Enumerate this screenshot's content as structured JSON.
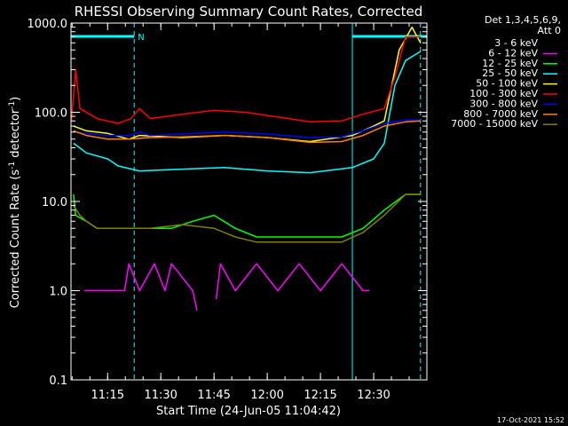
{
  "chart_data": {
    "type": "line",
    "title": "RHESSI Observing Summary Count Rates, Corrected",
    "xlabel": "Start Time (24-Jun-05 11:04:42)",
    "ylabel": "Corrected Count Rate (s⁻¹ detector⁻¹)",
    "ylabel_main": "Corrected Count Rate (s",
    "ylabel_sup1": "-1",
    "ylabel_mid": " detector",
    "ylabel_sup2": "-1",
    "ylabel_end": ")",
    "yscale": "log",
    "ylim": [
      0.1,
      1000
    ],
    "xlim": [
      11.078,
      12.75
    ],
    "x_unit": "hours UT",
    "x_ticks": [
      {
        "x": 11.25,
        "label": "11:15"
      },
      {
        "x": 11.5,
        "label": "11:30"
      },
      {
        "x": 11.75,
        "label": "11:45"
      },
      {
        "x": 12.0,
        "label": "12:00"
      },
      {
        "x": 12.25,
        "label": "12:15"
      },
      {
        "x": 12.5,
        "label": "12:30"
      }
    ],
    "y_ticks": [
      {
        "y": 1000,
        "label": "1000.0"
      },
      {
        "y": 100,
        "label": "100.0"
      },
      {
        "y": 10,
        "label": "10.0"
      },
      {
        "y": 1,
        "label": "1.0"
      },
      {
        "y": 0.1,
        "label": "0.1"
      }
    ],
    "detector_note_1": "Det 1,3,4,5,6,9,",
    "detector_note_2": "Att 0",
    "night_marker_label": "N",
    "night_bars": [
      [
        11.078,
        11.375
      ],
      [
        12.4,
        12.75
      ]
    ],
    "dashed_markers": [
      11.375,
      12.72
    ],
    "solid_markers": [
      11.078,
      12.4
    ],
    "footer_date": "17-Oct-2021 15:52",
    "series": [
      {
        "name": "3 - 6 keV",
        "color": "#000000",
        "points": [
          [
            11.09,
            70
          ],
          [
            11.2,
            60
          ],
          [
            11.3,
            55
          ],
          [
            11.4,
            60
          ],
          [
            11.6,
            60
          ],
          [
            11.8,
            62
          ],
          [
            12.0,
            58
          ],
          [
            12.2,
            53
          ],
          [
            12.35,
            55
          ],
          [
            12.48,
            70
          ],
          [
            12.55,
            80
          ],
          [
            12.72,
            82
          ]
        ]
      },
      {
        "name": "6 - 12 keV",
        "color": "#ff00ff",
        "points": [
          [
            11.14,
            1
          ],
          [
            11.33,
            1
          ],
          [
            11.35,
            2
          ],
          [
            11.4,
            1
          ],
          [
            11.47,
            2
          ],
          [
            11.52,
            1
          ],
          [
            11.55,
            2
          ],
          [
            11.65,
            1
          ],
          [
            11.67,
            0.6
          ],
          [
            11.7,
            null
          ],
          [
            11.76,
            0.8
          ],
          [
            11.78,
            2
          ],
          [
            11.85,
            1
          ],
          [
            11.95,
            2
          ],
          [
            12.05,
            1
          ],
          [
            12.15,
            2
          ],
          [
            12.25,
            1
          ],
          [
            12.35,
            2
          ],
          [
            12.45,
            1
          ],
          [
            12.48,
            1
          ]
        ]
      },
      {
        "name": "12 - 25 keV",
        "color": "#00ff00",
        "points": [
          [
            11.09,
            12
          ],
          [
            11.1,
            7
          ],
          [
            11.15,
            6
          ],
          [
            11.2,
            5
          ],
          [
            11.3,
            5
          ],
          [
            11.4,
            5
          ],
          [
            11.55,
            5
          ],
          [
            11.65,
            6
          ],
          [
            11.75,
            7
          ],
          [
            11.85,
            5
          ],
          [
            11.95,
            4
          ],
          [
            12.05,
            4
          ],
          [
            12.15,
            4
          ],
          [
            12.25,
            4
          ],
          [
            12.35,
            4
          ],
          [
            12.45,
            5
          ],
          [
            12.55,
            8
          ],
          [
            12.65,
            12
          ],
          [
            12.72,
            12
          ]
        ]
      },
      {
        "name": "25 - 50 keV",
        "color": "#00ffff",
        "points": [
          [
            11.09,
            45
          ],
          [
            11.15,
            35
          ],
          [
            11.25,
            30
          ],
          [
            11.3,
            25
          ],
          [
            11.4,
            22
          ],
          [
            11.6,
            23
          ],
          [
            11.8,
            24
          ],
          [
            12.0,
            22
          ],
          [
            12.2,
            21
          ],
          [
            12.4,
            24
          ],
          [
            12.5,
            30
          ],
          [
            12.55,
            45
          ],
          [
            12.6,
            200
          ],
          [
            12.65,
            380
          ],
          [
            12.72,
            480
          ]
        ]
      },
      {
        "name": "50 - 100 keV",
        "color": "#ffff00",
        "points": [
          [
            11.09,
            70
          ],
          [
            11.15,
            62
          ],
          [
            11.25,
            58
          ],
          [
            11.35,
            50
          ],
          [
            11.4,
            55
          ],
          [
            11.6,
            52
          ],
          [
            11.8,
            55
          ],
          [
            12.0,
            52
          ],
          [
            12.2,
            47
          ],
          [
            12.4,
            55
          ],
          [
            12.5,
            70
          ],
          [
            12.55,
            80
          ],
          [
            12.62,
            500
          ],
          [
            12.68,
            900
          ],
          [
            12.72,
            600
          ]
        ]
      },
      {
        "name": "100 - 300 keV",
        "color": "#ff0000",
        "points": [
          [
            11.08,
            80
          ],
          [
            11.1,
            300
          ],
          [
            11.12,
            110
          ],
          [
            11.2,
            85
          ],
          [
            11.3,
            75
          ],
          [
            11.36,
            85
          ],
          [
            11.4,
            110
          ],
          [
            11.45,
            85
          ],
          [
            11.6,
            95
          ],
          [
            11.75,
            105
          ],
          [
            11.9,
            100
          ],
          [
            12.0,
            92
          ],
          [
            12.1,
            85
          ],
          [
            12.2,
            78
          ],
          [
            12.35,
            80
          ],
          [
            12.45,
            95
          ],
          [
            12.55,
            110
          ],
          [
            12.6,
            250
          ],
          [
            12.65,
            700
          ],
          [
            12.72,
            700
          ]
        ]
      },
      {
        "name": "300 - 800 keV",
        "color": "#0000ff",
        "points": [
          [
            11.09,
            60
          ],
          [
            11.15,
            58
          ],
          [
            11.25,
            55
          ],
          [
            11.35,
            55
          ],
          [
            11.4,
            60
          ],
          [
            11.45,
            55
          ],
          [
            11.6,
            57
          ],
          [
            11.8,
            60
          ],
          [
            12.0,
            57
          ],
          [
            12.2,
            52
          ],
          [
            12.35,
            53
          ],
          [
            12.45,
            62
          ],
          [
            12.55,
            75
          ],
          [
            12.65,
            82
          ],
          [
            12.72,
            82
          ]
        ]
      },
      {
        "name": "800 - 7000 keV",
        "color": "#ff8000",
        "points": [
          [
            11.09,
            62
          ],
          [
            11.15,
            55
          ],
          [
            11.25,
            50
          ],
          [
            11.35,
            50
          ],
          [
            11.45,
            52
          ],
          [
            11.6,
            53
          ],
          [
            11.8,
            55
          ],
          [
            12.0,
            52
          ],
          [
            12.2,
            46
          ],
          [
            12.35,
            47
          ],
          [
            12.45,
            55
          ],
          [
            12.55,
            70
          ],
          [
            12.65,
            78
          ],
          [
            12.72,
            80
          ]
        ]
      },
      {
        "name": "7000 - 15000 keV",
        "color": "#808000",
        "points": [
          [
            11.09,
            9
          ],
          [
            11.12,
            7
          ],
          [
            11.15,
            6
          ],
          [
            11.2,
            5
          ],
          [
            11.3,
            5
          ],
          [
            11.45,
            5
          ],
          [
            11.6,
            5.5
          ],
          [
            11.75,
            5
          ],
          [
            11.85,
            4
          ],
          [
            11.95,
            3.5
          ],
          [
            12.05,
            3.5
          ],
          [
            12.15,
            3.5
          ],
          [
            12.25,
            3.5
          ],
          [
            12.35,
            3.5
          ],
          [
            12.45,
            4.5
          ],
          [
            12.55,
            7
          ],
          [
            12.65,
            12
          ],
          [
            12.72,
            12
          ]
        ]
      }
    ]
  }
}
